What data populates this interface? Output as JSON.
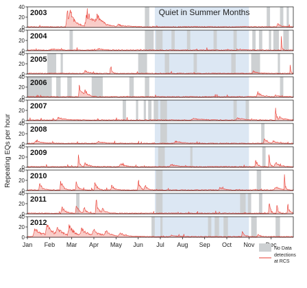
{
  "chart_data": {
    "type": "area",
    "ylabel": "Repeating EQs per hour",
    "ylim": [
      0,
      40
    ],
    "yticks": [
      0,
      20,
      40
    ],
    "months": [
      "Jan",
      "Feb",
      "Mar",
      "Apr",
      "May",
      "Jun",
      "Jul",
      "Aug",
      "Sep",
      "Oct",
      "Nov",
      "Dec"
    ],
    "annotation": "Quiet in Summer Months",
    "summer_window_months": [
      5.75,
      10.0
    ],
    "legend": {
      "no_data": "No Data",
      "detections": "detections at RCS"
    },
    "colors": {
      "detections": "#e8392f",
      "no_data": "#cdd0d2",
      "summer": "#dce7f3",
      "frame": "#222222"
    },
    "series": [
      {
        "name": "2003",
        "no_data": [
          [
            5.3,
            5.5
          ],
          [
            10.8,
            10.95
          ],
          [
            11.4,
            11.55
          ],
          [
            11.7,
            11.8
          ]
        ],
        "bursts": [
          [
            1.8,
            34,
            0.25
          ],
          [
            1.95,
            20,
            0.2
          ],
          [
            2.7,
            38,
            0.35
          ],
          [
            3.15,
            20,
            0.25
          ],
          [
            4.1,
            6,
            0.3
          ],
          [
            11.3,
            8,
            0.15
          ]
        ]
      },
      {
        "name": "2004",
        "no_data": [
          [
            1.9,
            2.05
          ],
          [
            5.3,
            5.7
          ],
          [
            5.8,
            6.1
          ],
          [
            6.5,
            6.65
          ],
          [
            7.2,
            7.35
          ],
          [
            8.4,
            8.55
          ],
          [
            9.3,
            9.45
          ],
          [
            10.15,
            10.3
          ],
          [
            10.45,
            10.6
          ],
          [
            10.9,
            11.0
          ],
          [
            11.1,
            11.35
          ],
          [
            11.55,
            11.8
          ]
        ],
        "bursts": [
          [
            1.1,
            3,
            0.3
          ],
          [
            3.2,
            3,
            0.3
          ],
          [
            11.45,
            38,
            0.03
          ],
          [
            9.6,
            2,
            0.3
          ]
        ]
      },
      {
        "name": "2005",
        "no_data": [
          [
            0.9,
            1.3
          ],
          [
            1.5,
            1.6
          ],
          [
            5.0,
            5.4
          ],
          [
            6.2,
            6.4
          ],
          [
            7.5,
            7.65
          ],
          [
            9.2,
            9.4
          ],
          [
            10.1,
            10.5
          ],
          [
            11.3,
            11.4
          ]
        ],
        "bursts": [
          [
            2.6,
            8,
            0.15
          ],
          [
            3.75,
            22,
            0.06
          ],
          [
            10.2,
            6,
            0.2
          ],
          [
            11.85,
            30,
            0.03
          ]
        ]
      },
      {
        "name": "2006",
        "no_data": [
          [
            0.0,
            1.1
          ],
          [
            1.3,
            1.5
          ],
          [
            1.8,
            2.0
          ],
          [
            2.9,
            3.4
          ],
          [
            4.6,
            4.8
          ],
          [
            5.3,
            5.5
          ],
          [
            11.4,
            11.55
          ]
        ],
        "bursts": [
          [
            2.35,
            27,
            0.15
          ],
          [
            2.6,
            12,
            0.15
          ],
          [
            10.4,
            10,
            0.2
          ],
          [
            11.2,
            4,
            0.2
          ]
        ]
      },
      {
        "name": "2007",
        "no_data": [
          [
            4.3,
            4.45
          ],
          [
            4.9,
            5.0
          ],
          [
            5.25,
            5.35
          ],
          [
            5.45,
            5.6
          ],
          [
            5.7,
            5.9
          ],
          [
            6.0,
            6.3
          ],
          [
            9.3,
            9.45
          ],
          [
            9.85,
            10.0
          ]
        ],
        "bursts": [
          [
            1.4,
            6,
            0.3
          ],
          [
            7.5,
            4,
            0.4
          ],
          [
            9.5,
            5,
            0.3
          ],
          [
            11.2,
            28,
            0.06
          ],
          [
            11.4,
            8,
            0.2
          ]
        ]
      },
      {
        "name": "2008",
        "no_data": [
          [
            6.0,
            6.3
          ],
          [
            10.55,
            10.7
          ]
        ],
        "bursts": [
          [
            0.4,
            6,
            0.3
          ],
          [
            3.2,
            4,
            0.3
          ],
          [
            6.7,
            5,
            0.3
          ],
          [
            10.7,
            12,
            0.15
          ],
          [
            11.1,
            5,
            0.2
          ]
        ]
      },
      {
        "name": "2009",
        "no_data": [
          [
            5.9,
            6.2
          ],
          [
            7.35,
            7.45
          ],
          [
            10.6,
            10.75
          ]
        ],
        "bursts": [
          [
            2.3,
            24,
            0.06
          ],
          [
            2.6,
            8,
            0.2
          ],
          [
            4.2,
            8,
            0.2
          ],
          [
            6.5,
            5,
            0.3
          ],
          [
            10.3,
            20,
            0.08
          ],
          [
            10.9,
            36,
            0.05
          ],
          [
            11.2,
            10,
            0.2
          ]
        ]
      },
      {
        "name": "2010",
        "no_data": [
          [
            5.8,
            6.1
          ],
          [
            10.35,
            10.55
          ]
        ],
        "bursts": [
          [
            0.55,
            18,
            0.12
          ],
          [
            1.5,
            22,
            0.12
          ],
          [
            2.2,
            16,
            0.12
          ],
          [
            3.05,
            20,
            0.1
          ],
          [
            3.8,
            14,
            0.12
          ],
          [
            5.0,
            30,
            0.08
          ],
          [
            5.3,
            16,
            0.1
          ],
          [
            8.7,
            6,
            0.2
          ],
          [
            11.2,
            8,
            0.2
          ],
          [
            11.6,
            30,
            0.04
          ]
        ]
      },
      {
        "name": "2011",
        "no_data": [
          [
            2.2,
            2.35
          ],
          [
            5.8,
            6.1
          ],
          [
            9.6,
            9.85
          ],
          [
            9.95,
            10.1
          ],
          [
            10.45,
            10.6
          ]
        ],
        "bursts": [
          [
            1.55,
            18,
            0.15
          ],
          [
            2.2,
            20,
            0.12
          ],
          [
            2.55,
            14,
            0.12
          ],
          [
            3.1,
            36,
            0.1
          ],
          [
            3.4,
            12,
            0.15
          ],
          [
            10.9,
            34,
            0.06
          ],
          [
            11.25,
            26,
            0.05
          ],
          [
            11.75,
            20,
            0.08
          ]
        ]
      },
      {
        "name": "2012",
        "no_data": [
          [
            5.6,
            5.75
          ],
          [
            6.0,
            6.1
          ],
          [
            8.15,
            8.3
          ],
          [
            8.45,
            8.65
          ],
          [
            8.85,
            9.05
          ],
          [
            10.1,
            10.35
          ],
          [
            11.2,
            11.4
          ]
        ],
        "bursts": [
          [
            0.35,
            20,
            0.35
          ],
          [
            0.9,
            24,
            0.3
          ],
          [
            1.35,
            16,
            0.3
          ],
          [
            1.9,
            22,
            0.3
          ],
          [
            2.45,
            18,
            0.3
          ],
          [
            3.0,
            14,
            0.3
          ],
          [
            3.55,
            12,
            0.25
          ],
          [
            4.2,
            8,
            0.3
          ],
          [
            6.5,
            3,
            0.3
          ],
          [
            9.7,
            12,
            0.1
          ],
          [
            10.4,
            6,
            0.1
          ]
        ]
      }
    ]
  }
}
